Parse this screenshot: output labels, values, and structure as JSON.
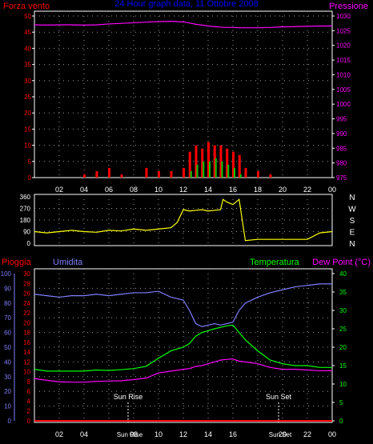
{
  "colors": {
    "background": "#000000",
    "frame": "#ffffff",
    "grid": "#9a9a9a",
    "wind": "#ff0000",
    "gust": "#ffffff",
    "pressure": "#ff00ff",
    "direction": "#ffff00",
    "humidity": "#7f7fff",
    "temperature": "#00ff00",
    "dewpoint": "#ff00ff",
    "rain": "#ff0000",
    "title": "#0000ff",
    "green_rain": "#00c800"
  },
  "header": {
    "left_label": "Forza vento",
    "center_title": "24 Hour graph data, 11 Ottobre 2008",
    "right_label": "Pressione"
  },
  "chart_data": [
    {
      "type": "bar",
      "panel": "wind-pressure",
      "ylabel_left": "Forza vento",
      "ylabel_right": "Pressione",
      "ylim_left": [
        0,
        50
      ],
      "ylim_right": [
        975,
        1030
      ],
      "yticks_left": [
        "0",
        "5",
        "10",
        "15",
        "20",
        "25",
        "30",
        "35",
        "40",
        "45",
        "50"
      ],
      "yticks_right": [
        "975",
        "980",
        "985",
        "990",
        "995",
        "1000",
        "1005",
        "1010",
        "1015",
        "1020",
        "1025",
        "1030"
      ],
      "x": [
        0,
        1,
        2,
        3,
        4,
        5,
        6,
        7,
        8,
        9,
        10,
        11,
        12,
        12.5,
        13,
        13.5,
        14,
        14.5,
        15,
        15.5,
        16,
        16.5,
        17,
        18,
        19,
        20,
        21,
        22,
        23,
        24
      ],
      "xlabels": [
        "02",
        "04",
        "06",
        "08",
        "10",
        "12",
        "14",
        "16",
        "18",
        "20",
        "22",
        "00"
      ],
      "series": [
        {
          "kind": "wind-avg",
          "values": [
            0,
            0,
            0,
            0,
            1,
            2,
            3,
            1,
            0,
            3,
            2,
            2,
            3,
            8,
            10,
            9,
            11,
            10,
            10,
            9,
            8,
            7,
            3,
            2,
            1,
            0,
            0,
            0,
            0,
            0
          ]
        },
        {
          "kind": "wind-gust",
          "values": [
            0,
            0,
            0,
            0,
            0,
            0,
            0,
            0,
            0,
            0,
            0,
            0,
            0,
            2,
            4,
            5,
            5,
            6,
            5,
            4,
            3,
            1,
            0,
            0,
            0,
            0,
            0,
            0,
            0,
            0
          ]
        },
        {
          "kind": "pressure",
          "values": [
            1027.0,
            1026.9,
            1027.0,
            1027.0,
            1026.9,
            1027.0,
            1027.3,
            1027.5,
            1027.7,
            1027.9,
            1028.1,
            1028.2,
            1028.0,
            1027.6,
            1027.2,
            1026.9,
            1026.6,
            1026.4,
            1026.2,
            1026.1,
            1026.1,
            1026.0,
            1026.0,
            1026.0,
            1026.1,
            1026.3,
            1026.4,
            1026.5,
            1026.6,
            1026.6
          ]
        }
      ]
    },
    {
      "type": "line",
      "panel": "wind-direction",
      "ylim": [
        0,
        360
      ],
      "yticks": [
        "0",
        "90",
        "180",
        "270",
        "360"
      ],
      "direction_labels": [
        "N",
        "W",
        "S",
        "E",
        "N"
      ],
      "x": [
        0,
        1,
        2,
        3,
        4,
        5,
        6,
        7,
        8,
        9,
        10,
        11,
        11.5,
        12,
        12.5,
        13,
        13.5,
        14,
        14.5,
        15,
        15.2,
        15.5,
        16,
        16.5,
        17,
        18,
        19,
        20,
        21,
        22,
        23,
        24
      ],
      "series": [
        {
          "name": "",
          "values": [
            90,
            80,
            90,
            100,
            90,
            85,
            100,
            95,
            110,
            100,
            110,
            120,
            160,
            260,
            250,
            255,
            260,
            250,
            255,
            260,
            340,
            320,
            300,
            340,
            20,
            30,
            30,
            30,
            30,
            30,
            80,
            90
          ]
        }
      ]
    },
    {
      "type": "line",
      "panel": "temperature-humidity",
      "ylim_humidity": [
        0,
        100
      ],
      "ylim_rain": [
        0,
        30
      ],
      "ylim_temperature": [
        0,
        40
      ],
      "yticks_humidity": [
        "0",
        "10",
        "20",
        "30",
        "40",
        "50",
        "60",
        "70",
        "80",
        "90",
        "100"
      ],
      "yticks_rain": [
        "0",
        "2",
        "4",
        "6",
        "8",
        "10",
        "12",
        "14",
        "16",
        "18",
        "20",
        "22",
        "24",
        "26",
        "28",
        "30"
      ],
      "yticks_temperature": [
        "0",
        "5",
        "10",
        "15",
        "20",
        "25",
        "30",
        "35",
        "40"
      ],
      "x": [
        0,
        1,
        2,
        3,
        4,
        5,
        6,
        7,
        8,
        9,
        10,
        11,
        12,
        12.5,
        13,
        13.5,
        14,
        14.5,
        15,
        15.5,
        16,
        16.5,
        17,
        18,
        19,
        20,
        21,
        22,
        23,
        24
      ],
      "xlabels": [
        "02",
        "04",
        "06",
        "08",
        "10",
        "12",
        "14",
        "16",
        "18",
        "20",
        "22",
        "00"
      ],
      "series": [
        {
          "name": "Umidita",
          "values": [
            86,
            85,
            84,
            85,
            85,
            86,
            85,
            86,
            87,
            87,
            88,
            84,
            82,
            75,
            66,
            64,
            65,
            66,
            65,
            66,
            67,
            75,
            80,
            84,
            87,
            89,
            91,
            92,
            93,
            93
          ]
        },
        {
          "name": "Temperatura",
          "values": [
            14,
            13.5,
            13.5,
            13.5,
            13.5,
            13.8,
            13.7,
            13.9,
            14.2,
            14.8,
            17,
            19,
            20,
            21,
            23,
            24,
            24.5,
            25,
            25.4,
            25.8,
            26,
            24,
            22,
            19,
            16.5,
            15.5,
            15,
            15,
            14.5,
            14.5
          ]
        },
        {
          "name": "Dew Point (°C)",
          "values": [
            11.5,
            11,
            10.6,
            10.5,
            10.5,
            10.7,
            10.8,
            10.9,
            11.2,
            11.6,
            13,
            13.5,
            14,
            14.2,
            14.8,
            15,
            15.5,
            16,
            16.5,
            16.7,
            16.8,
            16.2,
            16,
            15.5,
            14.5,
            14,
            14,
            13.8,
            13.6,
            13.6
          ]
        },
        {
          "name": "Pioggia",
          "values": [
            0,
            0,
            0,
            0,
            0,
            0,
            0,
            0,
            0,
            0,
            0,
            0,
            0,
            0,
            0,
            0,
            0,
            0,
            0,
            0,
            0,
            0,
            0,
            0,
            0,
            0,
            0,
            0,
            0,
            0
          ]
        }
      ],
      "annotations": [
        "Sun Rise",
        "Sun Set"
      ],
      "axis_event_labels": [
        "Sun Rise",
        "Sun Set"
      ]
    }
  ],
  "labels": {
    "pioggia": "Pioggia",
    "umidita": "Umidita",
    "temperatura": "Temperatura",
    "dewpoint": "Dew Point (°C)",
    "sunrise": "Sun Rise",
    "sunset": "Sun Set",
    "sunrise_axis": "Sun Rise",
    "sunset_axis": "Sun Set"
  }
}
